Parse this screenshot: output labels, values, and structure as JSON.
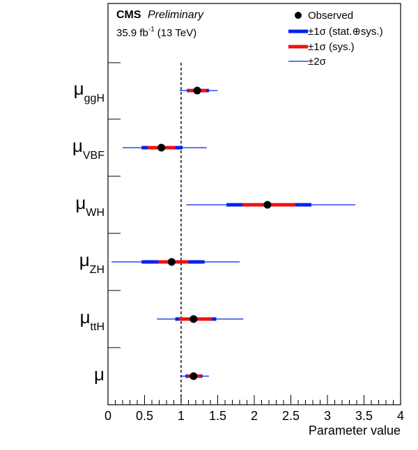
{
  "header": {
    "experiment": "CMS",
    "status": "Preliminary",
    "lumi_value": "35.9 fb",
    "lumi_exp": "-1",
    "lumi_energy": "(13 TeV)"
  },
  "legend": {
    "observed": "Observed",
    "stat_sys": "±1σ (stat.⊕sys.)",
    "sys": "±1σ (sys.)",
    "two_sigma": "±2σ"
  },
  "colors": {
    "stat_sys": "#0022ee",
    "sys": "#ee1111",
    "two_sigma": "#0022ee",
    "point": "#000000"
  },
  "labels": [
    {
      "symbol": "μ",
      "sub": "ggH"
    },
    {
      "symbol": "μ",
      "sub": "VBF"
    },
    {
      "symbol": "μ",
      "sub": "WH"
    },
    {
      "symbol": "μ",
      "sub": "ZH"
    },
    {
      "symbol": "μ",
      "sub": "ttH"
    },
    {
      "symbol": "μ",
      "sub": ""
    }
  ],
  "chart_data": {
    "type": "scatter",
    "xlabel": "Parameter value",
    "xlim": [
      0,
      4
    ],
    "xticks": [
      "0",
      "0.5",
      "1",
      "1.5",
      "2",
      "2.5",
      "3",
      "3.5",
      "4"
    ],
    "reference_line": 1,
    "points": [
      {
        "name": "μggH",
        "value": 1.22,
        "sys": [
          1.1,
          1.35
        ],
        "one_sigma": [
          1.08,
          1.38
        ],
        "two_sigma": [
          0.98,
          1.5
        ]
      },
      {
        "name": "μVBF",
        "value": 0.73,
        "sys": [
          0.54,
          0.92
        ],
        "one_sigma": [
          0.46,
          1.02
        ],
        "two_sigma": [
          0.2,
          1.35
        ]
      },
      {
        "name": "μWH",
        "value": 2.18,
        "sys": [
          1.84,
          2.56
        ],
        "one_sigma": [
          1.62,
          2.78
        ],
        "two_sigma": [
          1.07,
          3.38
        ]
      },
      {
        "name": "μZH",
        "value": 0.87,
        "sys": [
          0.69,
          1.1
        ],
        "one_sigma": [
          0.46,
          1.32
        ],
        "two_sigma": [
          0.05,
          1.8
        ]
      },
      {
        "name": "μttH",
        "value": 1.17,
        "sys": [
          0.97,
          1.42
        ],
        "one_sigma": [
          0.92,
          1.48
        ],
        "two_sigma": [
          0.67,
          1.85
        ]
      },
      {
        "name": "μ",
        "value": 1.17,
        "sys": [
          1.09,
          1.27
        ],
        "one_sigma": [
          1.06,
          1.29
        ],
        "two_sigma": [
          0.99,
          1.38
        ]
      }
    ]
  }
}
